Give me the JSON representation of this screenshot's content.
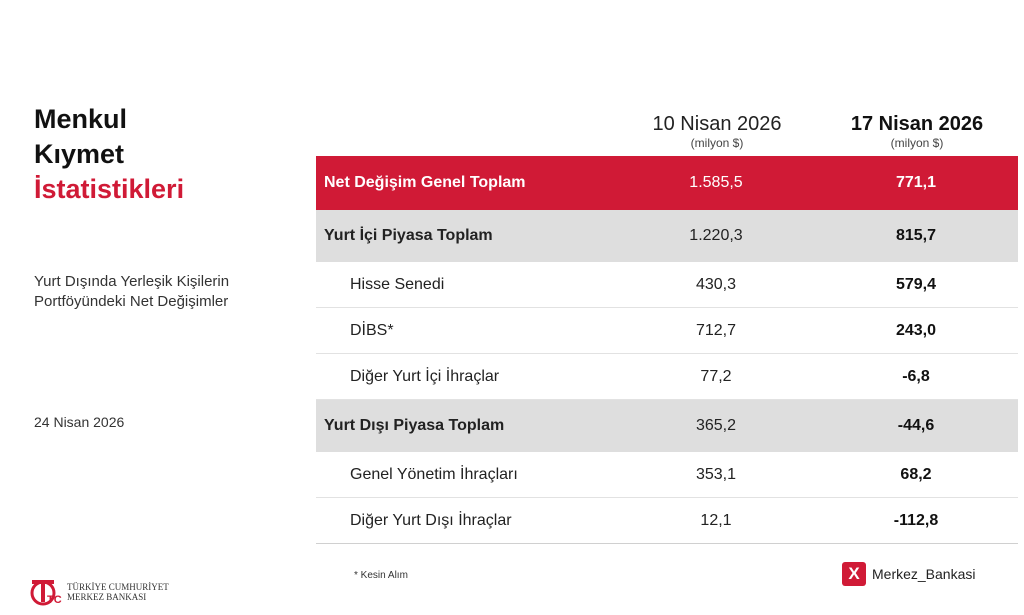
{
  "title": {
    "line1": "Menkul",
    "line2": "Kıymet",
    "line3": "İstatistikleri"
  },
  "subtitle": "Yurt Dışında Yerleşik Kişilerin Portföyündeki Net Değişimler",
  "publication_date": "24 Nisan 2026",
  "columns": [
    {
      "date": "10 Nisan 2026",
      "unit": "(milyon $)"
    },
    {
      "date": "17 Nisan 2026",
      "unit": "(milyon $)"
    }
  ],
  "rows": [
    {
      "label": "Net Değişim Genel Toplam",
      "v1": "1.585,5",
      "v2": "771,1"
    },
    {
      "label": "Yurt İçi Piyasa Toplam",
      "v1": "1.220,3",
      "v2": "815,7"
    },
    {
      "label": "Hisse Senedi",
      "v1": "430,3",
      "v2": "579,4"
    },
    {
      "label": "DİBS*",
      "v1": "712,7",
      "v2": "243,0"
    },
    {
      "label": "Diğer Yurt İçi İhraçlar",
      "v1": "77,2",
      "v2": "-6,8"
    },
    {
      "label": "Yurt Dışı Piyasa Toplam",
      "v1": "365,2",
      "v2": "-44,6"
    },
    {
      "label": "Genel Yönetim İhraçları",
      "v1": "353,1",
      "v2": "68,2"
    },
    {
      "label": "Diğer Yurt Dışı İhraçlar",
      "v1": "12,1",
      "v2": "-112,8"
    }
  ],
  "footnote": "* Kesin Alım",
  "logo": {
    "line1": "TÜRKİYE CUMHURİYET",
    "line2": "MERKEZ BANKASI",
    "mark": "TCMB"
  },
  "social": {
    "icon": "x-icon",
    "glyph": "X",
    "handle": "Merkez_Bankasi"
  },
  "colors": {
    "accent": "#d01a36",
    "sum_row": "#dedede"
  }
}
